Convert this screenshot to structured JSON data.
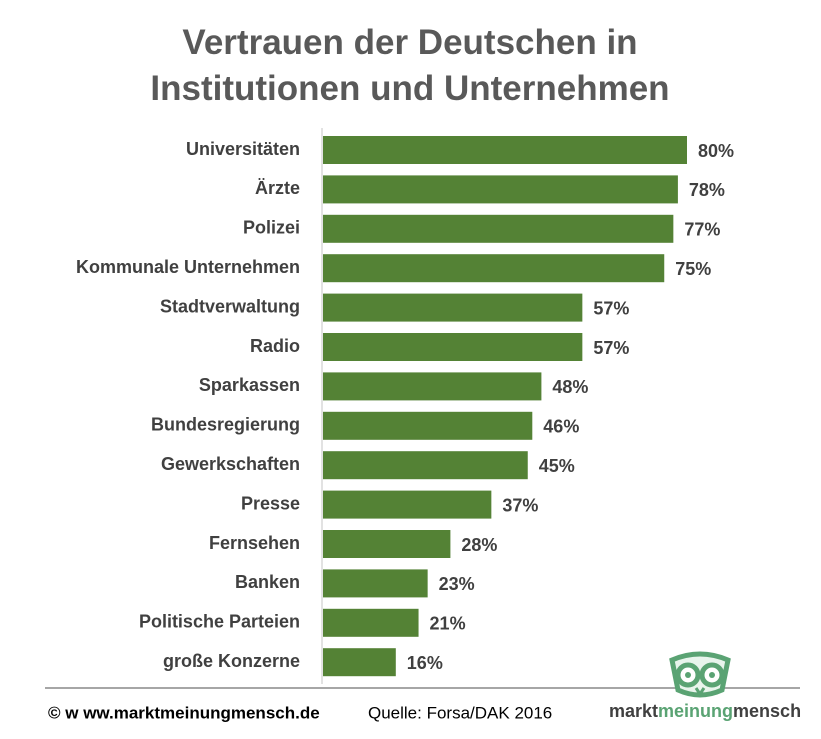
{
  "chart_data": {
    "type": "bar",
    "orientation": "horizontal",
    "title": "Vertrauen der Deutschen in Institutionen und Unternehmen",
    "categories": [
      "Universitäten",
      "Ärzte",
      "Polizei",
      "Kommunale Unternehmen",
      "Stadtverwaltung",
      "Radio",
      "Sparkassen",
      "Bundesregierung",
      "Gewerkschaften",
      "Presse",
      "Fernsehen",
      "Banken",
      "Politische Parteien",
      "große Konzerne"
    ],
    "values": [
      80,
      78,
      77,
      75,
      57,
      57,
      48,
      46,
      45,
      37,
      28,
      23,
      21,
      16
    ],
    "value_labels": [
      "80%",
      "78%",
      "77%",
      "75%",
      "57%",
      "57%",
      "48%",
      "46%",
      "45%",
      "37%",
      "28%",
      "23%",
      "21%",
      "16%"
    ],
    "color": "#548235"
  },
  "footer": {
    "copyright": "© w ww.marktmeinungmensch.de",
    "source": "Quelle: Forsa/DAK 2016",
    "logo": [
      "markt",
      "meinung",
      "mensch"
    ]
  }
}
